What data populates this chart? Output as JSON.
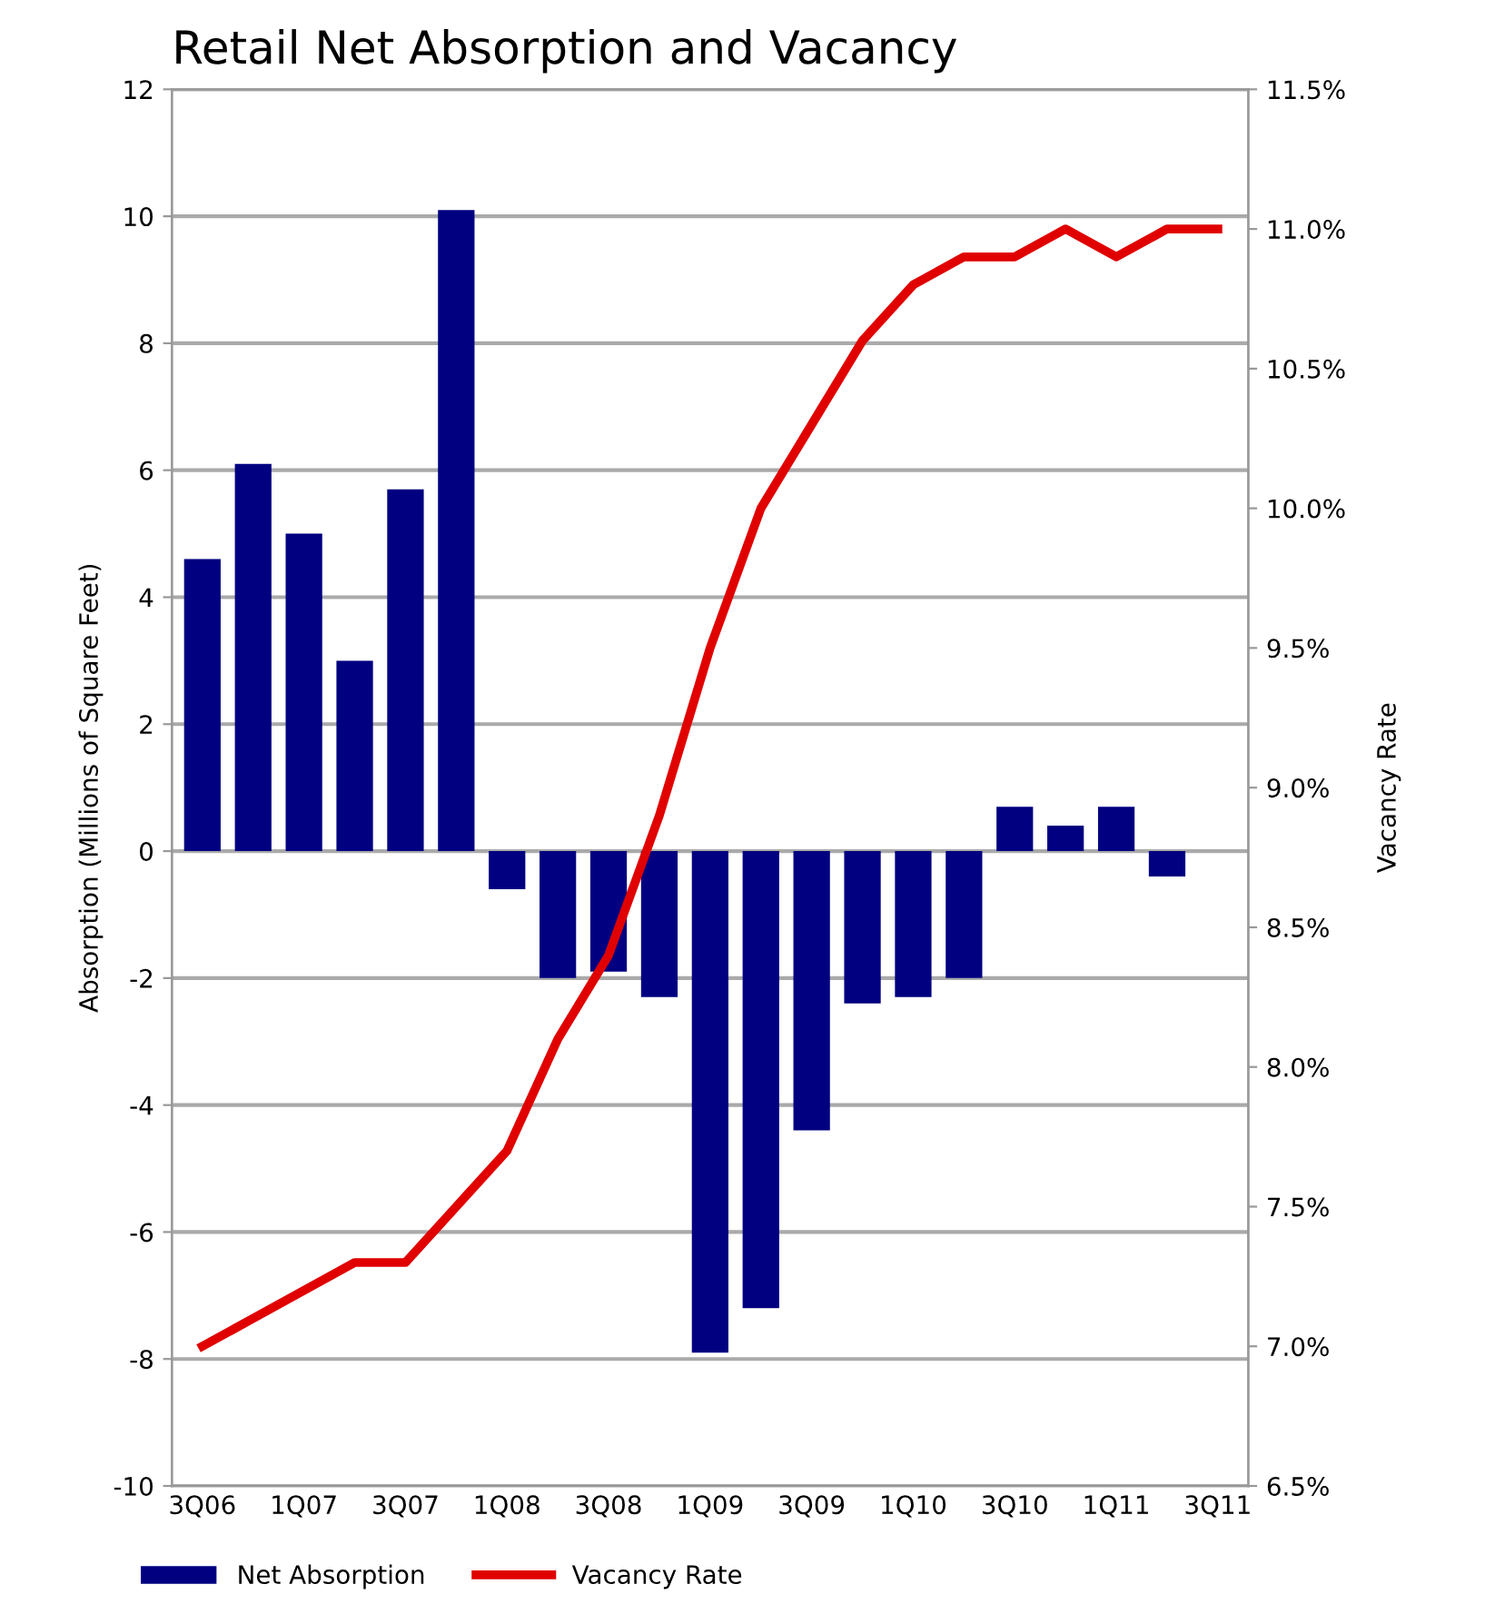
{
  "chart_data": {
    "type": "bar",
    "title": "Retail Net Absorption and Vacancy",
    "ylabel": "Absorption (Millions of Square Feet)",
    "y2label": "Vacancy Rate",
    "categories": [
      "3Q06",
      null,
      "1Q07",
      null,
      "3Q07",
      null,
      "1Q08",
      null,
      "3Q08",
      null,
      "1Q09",
      null,
      "3Q09",
      null,
      "1Q10",
      null,
      "3Q10",
      null,
      "1Q11",
      null,
      "3Q11"
    ],
    "series": [
      {
        "name": "Net Absorption",
        "color": "#000080",
        "values": [
          4.6,
          6.1,
          5.0,
          3.0,
          5.7,
          10.1,
          -0.6,
          -2.0,
          -1.9,
          -2.3,
          -7.9,
          -7.2,
          -4.4,
          -2.4,
          -2.3,
          -2.0,
          0.7,
          0.4,
          0.7,
          -0.4,
          null
        ]
      },
      {
        "name": "Vacancy Rate",
        "type": "line",
        "axis": "y2",
        "color": "#e00000",
        "values": [
          7.0,
          7.1,
          7.2,
          7.3,
          7.3,
          7.5,
          7.7,
          8.1,
          8.4,
          8.9,
          9.5,
          10.0,
          10.3,
          10.6,
          10.8,
          10.9,
          10.9,
          11.0,
          10.9,
          11.0,
          11.0
        ]
      }
    ],
    "ylim": [
      -10,
      12
    ],
    "yticks": [
      -10,
      -8,
      -6,
      -4,
      -2,
      0,
      2,
      4,
      6,
      8,
      10,
      12
    ],
    "y2lim": [
      6.5,
      11.5
    ],
    "y2ticks": [
      {
        "value": 6.5,
        "label": "6.5%"
      },
      {
        "value": 7.0,
        "label": "7.0%"
      },
      {
        "value": 7.5,
        "label": "7.5%"
      },
      {
        "value": 8.0,
        "label": "8.0%"
      },
      {
        "value": 8.5,
        "label": "8.5%"
      },
      {
        "value": 9.0,
        "label": "9.0%"
      },
      {
        "value": 9.5,
        "label": "9.5%"
      },
      {
        "value": 10.0,
        "label": "10.0%"
      },
      {
        "value": 10.5,
        "label": "10.5%"
      },
      {
        "value": 11.0,
        "label": "11.0%"
      },
      {
        "value": 11.5,
        "label": "11.5%"
      }
    ],
    "grid": "y",
    "legend": "bottom left",
    "line_style": "solid",
    "marker": "none"
  }
}
